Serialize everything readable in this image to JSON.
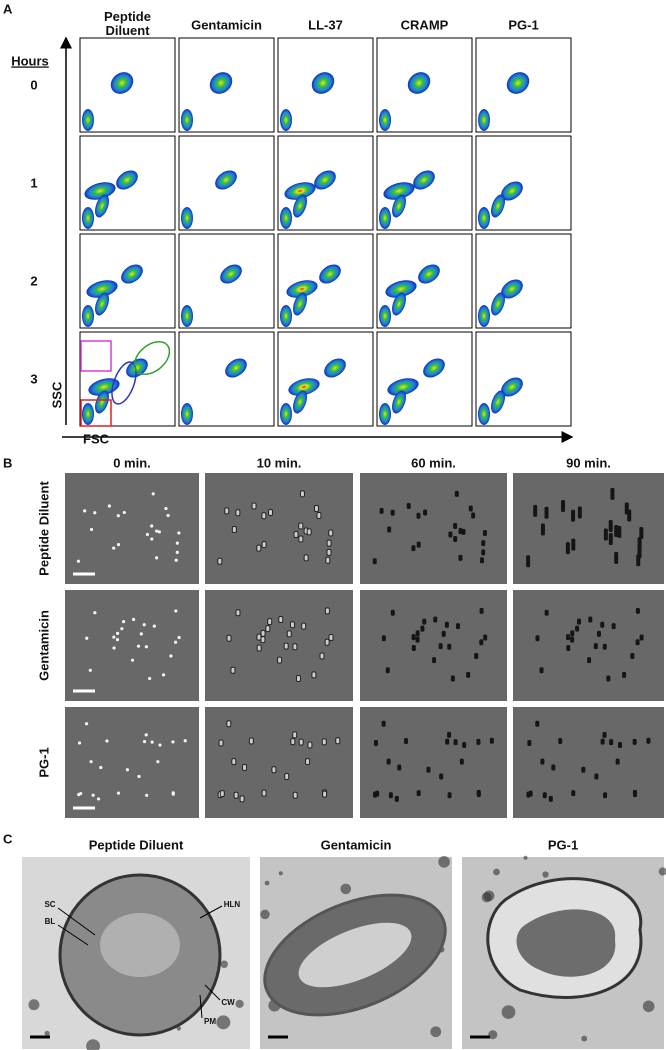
{
  "panel_a": {
    "label": "A",
    "hours_label": "Hours",
    "columns": [
      "Peptide Diluent",
      "Gentamicin",
      "LL-37",
      "CRAMP",
      "PG-1"
    ],
    "rows": [
      "0",
      "1",
      "2",
      "3"
    ],
    "y_axis_label": "SSC",
    "x_axis_label": "FSC"
  },
  "panel_b": {
    "label": "B",
    "columns": [
      "0 min.",
      "10 min.",
      "60 min.",
      "90 min."
    ],
    "rows": [
      "Peptide Diluent",
      "Gentamicin",
      "PG-1"
    ]
  },
  "panel_c": {
    "label": "C",
    "panels": [
      {
        "title": "Peptide Diluent",
        "annotations": [
          "SC",
          "BL",
          "HLN",
          "CW",
          "PM"
        ]
      },
      {
        "title": "Gentamicin"
      },
      {
        "title": "PG-1"
      }
    ]
  }
}
